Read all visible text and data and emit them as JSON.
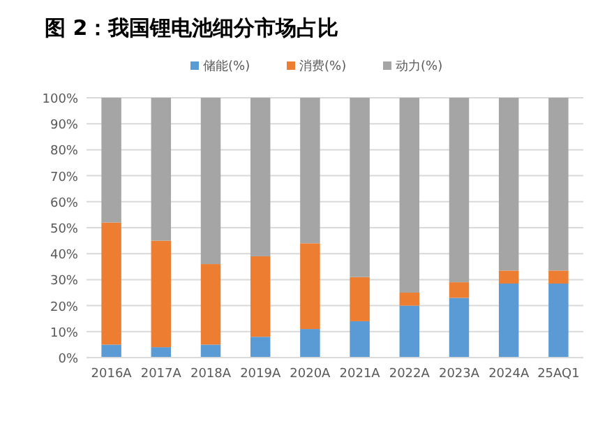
{
  "chart_data": {
    "type": "bar",
    "title": "图 2：我国锂电池细分市场占比",
    "stacked": true,
    "legend": "top",
    "grid": "y",
    "categories": [
      "2016A",
      "2017A",
      "2018A",
      "2019A",
      "2020A",
      "2021A",
      "2022A",
      "2023A",
      "2024A",
      "25AQ1"
    ],
    "ylim": [
      0,
      100
    ],
    "yticks": [
      {
        "value": 0,
        "label": "0%"
      },
      {
        "value": 10,
        "label": "10%"
      },
      {
        "value": 20,
        "label": "20%"
      },
      {
        "value": 30,
        "label": "30%"
      },
      {
        "value": 40,
        "label": "40%"
      },
      {
        "value": 50,
        "label": "50%"
      },
      {
        "value": 60,
        "label": "60%"
      },
      {
        "value": 70,
        "label": "70%"
      },
      {
        "value": 80,
        "label": "80%"
      },
      {
        "value": 90,
        "label": "90%"
      },
      {
        "value": 100,
        "label": "100%"
      }
    ],
    "series": [
      {
        "name": "储能(%)",
        "color": "#5b9bd5",
        "values": [
          5,
          4,
          5,
          8,
          11,
          14,
          20,
          23,
          28.5,
          28.5
        ]
      },
      {
        "name": "消费(%)",
        "color": "#ed7d31",
        "values": [
          47,
          41,
          31,
          31,
          33,
          17,
          5,
          6,
          5,
          5
        ]
      },
      {
        "name": "动力(%)",
        "color": "#a5a5a5",
        "values": [
          48,
          55,
          64,
          61,
          56,
          69,
          75,
          71,
          66.5,
          66.5
        ]
      }
    ]
  }
}
